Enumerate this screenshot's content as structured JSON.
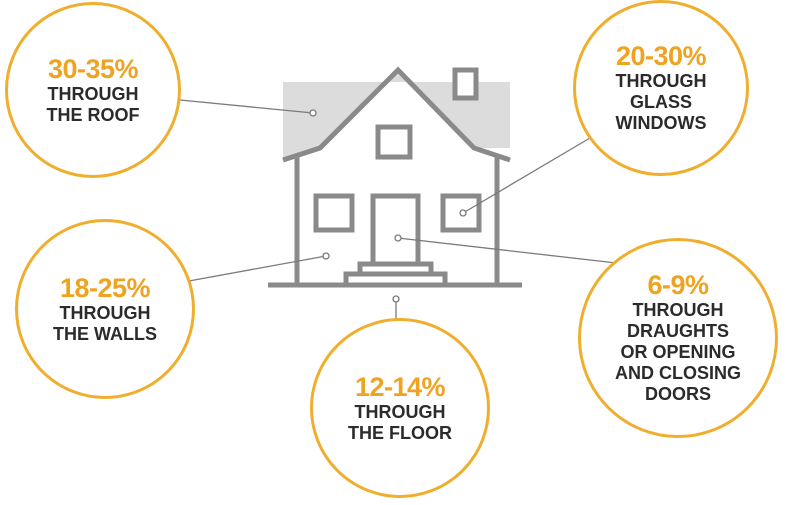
{
  "colors": {
    "accent": "#eea321",
    "ring": "#f0ae2e",
    "house_line": "#8a8a8a",
    "roof_fill": "#dcdcdc",
    "text": "#2b2b2b"
  },
  "callouts": {
    "roof": {
      "percent": "30-35%",
      "lines": [
        "THROUGH",
        "THE ROOF"
      ]
    },
    "windows": {
      "percent": "20-30%",
      "lines": [
        "THROUGH",
        "GLASS",
        "WINDOWS"
      ]
    },
    "walls": {
      "percent": "18-25%",
      "lines": [
        "THROUGH",
        "THE WALLS"
      ]
    },
    "floor": {
      "percent": "12-14%",
      "lines": [
        "THROUGH",
        "THE FLOOR"
      ]
    },
    "doors": {
      "percent": "6-9%",
      "lines": [
        "THROUGH",
        "DRAUGHTS",
        "OR OPENING",
        "AND CLOSING",
        "DOORS"
      ]
    }
  }
}
